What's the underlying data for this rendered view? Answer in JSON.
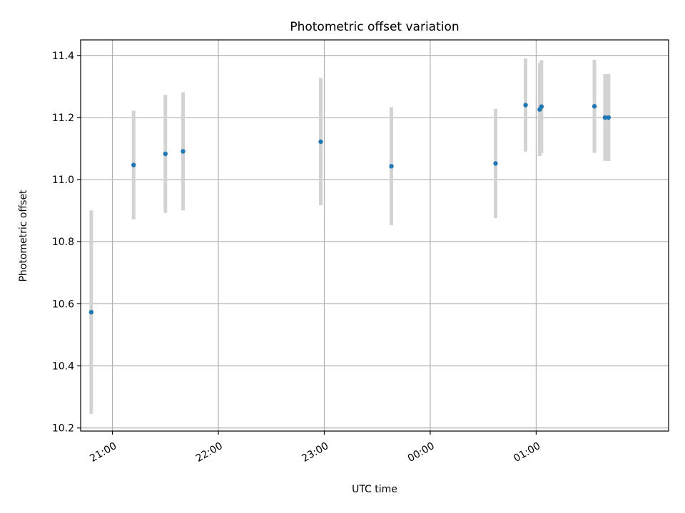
{
  "chart_data": {
    "type": "scatter",
    "title": "Photometric offset variation",
    "xlabel": "UTC time",
    "ylabel": "Photometric offset",
    "grid": true,
    "xlim": [
      "20:42",
      "26:15"
    ],
    "ylim": [
      10.19,
      11.45
    ],
    "x_ticks": [
      {
        "time": "21:00",
        "label": "21:00"
      },
      {
        "time": "22:00",
        "label": "22:00"
      },
      {
        "time": "23:00",
        "label": "23:00"
      },
      {
        "time": "24:00",
        "label": "00:00"
      },
      {
        "time": "25:00",
        "label": "01:00"
      }
    ],
    "y_ticks": [
      10.2,
      10.4,
      10.6,
      10.8,
      11.0,
      11.2,
      11.4
    ],
    "y_tick_labels": [
      "10.2",
      "10.4",
      "10.6",
      "10.8",
      "11.0",
      "11.2",
      "11.4"
    ],
    "colors": {
      "point": "#1f77b4",
      "errorbar": "#d3d3d3",
      "grid": "#b0b0b0",
      "axes": "#000000"
    },
    "points": [
      {
        "time": "20:48",
        "y": 10.573,
        "err": 0.328
      },
      {
        "time": "21:12",
        "y": 11.047,
        "err": 0.175
      },
      {
        "time": "21:30",
        "y": 11.083,
        "err": 0.19
      },
      {
        "time": "21:40",
        "y": 11.091,
        "err": 0.19
      },
      {
        "time": "22:58",
        "y": 11.122,
        "err": 0.205
      },
      {
        "time": "23:38",
        "y": 11.043,
        "err": 0.19
      },
      {
        "time": "24:37",
        "y": 11.052,
        "err": 0.176
      },
      {
        "time": "24:54",
        "y": 11.24,
        "err": 0.15
      },
      {
        "time": "25:02",
        "y": 11.226,
        "err": 0.15
      },
      {
        "time": "25:03",
        "y": 11.235,
        "err": 0.15
      },
      {
        "time": "25:33",
        "y": 11.236,
        "err": 0.15
      },
      {
        "time": "25:39",
        "y": 11.2,
        "err": 0.14
      },
      {
        "time": "25:41",
        "y": 11.2,
        "err": 0.14
      }
    ]
  }
}
